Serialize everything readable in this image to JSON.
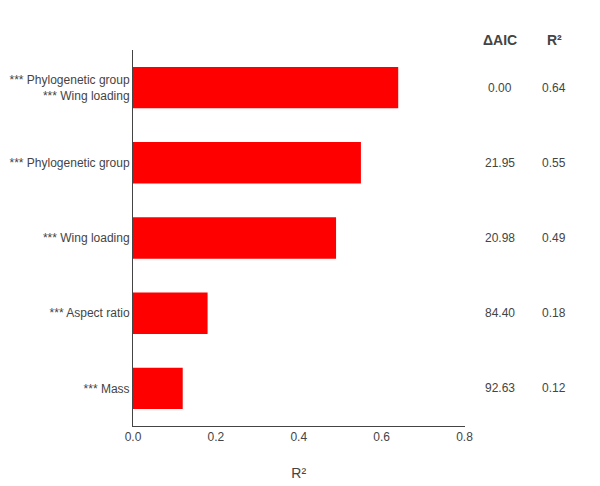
{
  "chart_data": {
    "type": "bar",
    "orientation": "horizontal",
    "categories": [
      "*** Phylogenetic group\n*** Wing loading",
      "*** Phylogenetic group",
      "*** Wing loading",
      "*** Aspect ratio",
      "*** Mass"
    ],
    "values": [
      0.64,
      0.55,
      0.49,
      0.18,
      0.12
    ],
    "color": "#FF0000",
    "xlabel": "R²",
    "xlim": [
      0.0,
      0.8
    ],
    "xticks": [
      {
        "value": 0.0,
        "label": "0.0"
      },
      0.2,
      0.4,
      0.6,
      0.8
    ],
    "grid": false,
    "columns": [
      {
        "header": "ΔAIC",
        "values": [
          0.0,
          21.95,
          20.98,
          84.4,
          92.63
        ],
        "value_labels": [
          "0.00",
          "21.95",
          "20.98",
          "84.40",
          "92.63"
        ]
      },
      {
        "header": "R²",
        "values": [
          0.64,
          0.55,
          0.49,
          0.18,
          0.12
        ]
      }
    ]
  }
}
